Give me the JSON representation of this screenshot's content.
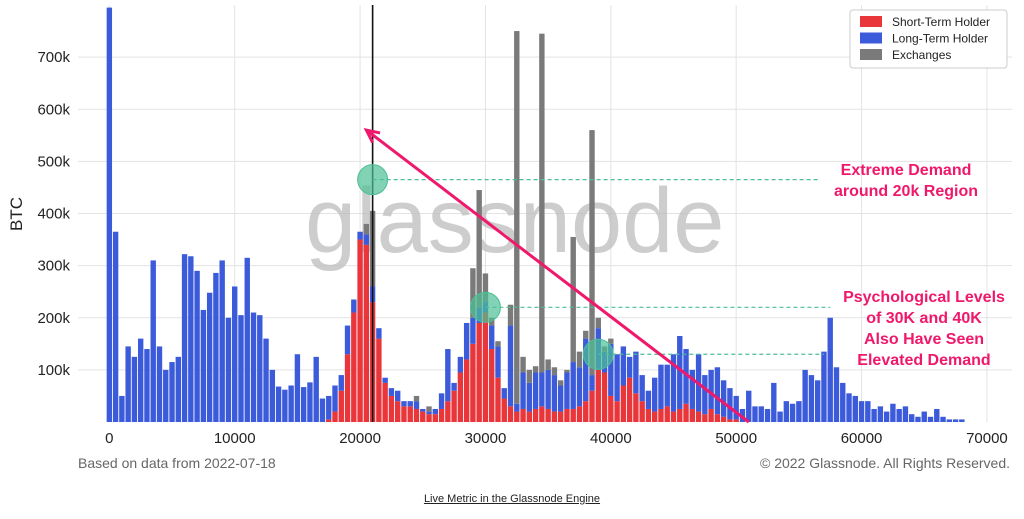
{
  "chart_data": {
    "type": "bar",
    "stacked": true,
    "ylabel": "BTC",
    "xlim": [
      -2500,
      72000
    ],
    "ylim": [
      0,
      800000
    ],
    "bin_width": 500,
    "x_ticks": [
      0,
      10000,
      20000,
      30000,
      40000,
      50000,
      60000,
      70000
    ],
    "x_tick_labels": [
      "0",
      "10000",
      "20000",
      "30000",
      "40000",
      "50000",
      "60000",
      "70000"
    ],
    "y_ticks": [
      100000,
      200000,
      300000,
      400000,
      500000,
      600000,
      700000
    ],
    "y_tick_labels": [
      "100k",
      "200k",
      "300k",
      "400k",
      "500k",
      "600k",
      "700k"
    ],
    "grid": true,
    "legend_position": "top-right",
    "colors": {
      "sth": "#e8363b",
      "lth": "#3b5bdb",
      "exchanges": "#7a7a7a",
      "accent": "#f0186b",
      "circle": "#4dbf95"
    },
    "series": [
      {
        "name": "Short-Term Holder",
        "key": "sth",
        "points": [
          [
            17500,
            5000
          ],
          [
            18000,
            20000
          ],
          [
            18500,
            60000
          ],
          [
            19000,
            130000
          ],
          [
            19500,
            210000
          ],
          [
            20000,
            350000
          ],
          [
            20500,
            340000
          ],
          [
            21000,
            230000
          ],
          [
            21500,
            160000
          ],
          [
            22000,
            75000
          ],
          [
            22500,
            50000
          ],
          [
            23000,
            40000
          ],
          [
            23500,
            30000
          ],
          [
            24000,
            30000
          ],
          [
            24500,
            25000
          ],
          [
            25000,
            20000
          ],
          [
            25500,
            15000
          ],
          [
            26000,
            15000
          ],
          [
            26500,
            25000
          ],
          [
            27000,
            40000
          ],
          [
            27500,
            60000
          ],
          [
            28000,
            95000
          ],
          [
            28500,
            120000
          ],
          [
            29000,
            150000
          ],
          [
            29500,
            190000
          ],
          [
            30000,
            210000
          ],
          [
            30500,
            140000
          ],
          [
            31000,
            85000
          ],
          [
            31500,
            45000
          ],
          [
            32000,
            30000
          ],
          [
            32500,
            20000
          ],
          [
            33000,
            25000
          ],
          [
            33500,
            20000
          ],
          [
            34000,
            25000
          ],
          [
            34500,
            30000
          ],
          [
            35000,
            25000
          ],
          [
            35500,
            20000
          ],
          [
            36000,
            20000
          ],
          [
            36500,
            25000
          ],
          [
            37000,
            25000
          ],
          [
            37500,
            30000
          ],
          [
            38000,
            40000
          ],
          [
            38500,
            60000
          ],
          [
            39000,
            100000
          ],
          [
            39500,
            95000
          ],
          [
            40000,
            50000
          ],
          [
            40500,
            40000
          ],
          [
            41000,
            70000
          ],
          [
            41500,
            85000
          ],
          [
            42000,
            55000
          ],
          [
            42500,
            40000
          ],
          [
            43000,
            25000
          ],
          [
            43500,
            20000
          ],
          [
            44000,
            25000
          ],
          [
            44500,
            30000
          ],
          [
            45000,
            20000
          ],
          [
            45500,
            25000
          ],
          [
            46000,
            35000
          ],
          [
            46500,
            25000
          ],
          [
            47000,
            20000
          ],
          [
            47500,
            15000
          ],
          [
            48000,
            25000
          ],
          [
            48500,
            15000
          ],
          [
            49000,
            10000
          ],
          [
            49500,
            5000
          ],
          [
            50000,
            5000
          ]
        ]
      },
      {
        "name": "Long-Term Holder",
        "key": "lth",
        "points": [
          [
            0,
            795000
          ],
          [
            500,
            365000
          ],
          [
            1000,
            50000
          ],
          [
            1500,
            145000
          ],
          [
            2000,
            125000
          ],
          [
            2500,
            160000
          ],
          [
            3000,
            140000
          ],
          [
            3500,
            310000
          ],
          [
            4000,
            145000
          ],
          [
            4500,
            100000
          ],
          [
            5000,
            115000
          ],
          [
            5500,
            125000
          ],
          [
            6000,
            322000
          ],
          [
            6500,
            318000
          ],
          [
            7000,
            290000
          ],
          [
            7500,
            215000
          ],
          [
            8000,
            248000
          ],
          [
            8500,
            286000
          ],
          [
            9000,
            310000
          ],
          [
            9500,
            200000
          ],
          [
            10000,
            260000
          ],
          [
            10500,
            205000
          ],
          [
            11000,
            315000
          ],
          [
            11500,
            210000
          ],
          [
            12000,
            205000
          ],
          [
            12500,
            160000
          ],
          [
            13000,
            100000
          ],
          [
            13500,
            68000
          ],
          [
            14000,
            62000
          ],
          [
            14500,
            70000
          ],
          [
            15000,
            130000
          ],
          [
            15500,
            67000
          ],
          [
            16000,
            76000
          ],
          [
            16500,
            125000
          ],
          [
            17000,
            45000
          ],
          [
            17500,
            45000
          ],
          [
            18000,
            50000
          ],
          [
            18500,
            30000
          ],
          [
            19000,
            55000
          ],
          [
            19500,
            25000
          ],
          [
            20000,
            15000
          ],
          [
            20500,
            20000
          ],
          [
            21000,
            30000
          ],
          [
            21500,
            20000
          ],
          [
            22000,
            10000
          ],
          [
            22500,
            15000
          ],
          [
            23000,
            20000
          ],
          [
            23500,
            10000
          ],
          [
            24000,
            10000
          ],
          [
            24500,
            15000
          ],
          [
            25000,
            5000
          ],
          [
            25500,
            5000
          ],
          [
            26000,
            10000
          ],
          [
            26500,
            30000
          ],
          [
            27000,
            100000
          ],
          [
            27500,
            15000
          ],
          [
            28000,
            30000
          ],
          [
            28500,
            70000
          ],
          [
            29000,
            50000
          ],
          [
            29500,
            30000
          ],
          [
            30000,
            20000
          ],
          [
            30500,
            45000
          ],
          [
            31000,
            60000
          ],
          [
            31500,
            20000
          ],
          [
            32000,
            155000
          ],
          [
            32500,
            15000
          ],
          [
            33000,
            70000
          ],
          [
            33500,
            55000
          ],
          [
            34000,
            70000
          ],
          [
            34500,
            65000
          ],
          [
            35000,
            75000
          ],
          [
            35500,
            70000
          ],
          [
            36000,
            50000
          ],
          [
            36500,
            70000
          ],
          [
            37000,
            90000
          ],
          [
            37500,
            75000
          ],
          [
            38000,
            120000
          ],
          [
            38500,
            30000
          ],
          [
            39000,
            80000
          ],
          [
            39500,
            40000
          ],
          [
            40000,
            100000
          ],
          [
            40500,
            90000
          ],
          [
            41000,
            75000
          ],
          [
            41500,
            40000
          ],
          [
            42000,
            80000
          ],
          [
            42500,
            50000
          ],
          [
            43000,
            35000
          ],
          [
            43500,
            65000
          ],
          [
            44000,
            85000
          ],
          [
            44500,
            80000
          ],
          [
            45000,
            110000
          ],
          [
            45500,
            140000
          ],
          [
            46000,
            105000
          ],
          [
            46500,
            75000
          ],
          [
            47000,
            110000
          ],
          [
            47500,
            75000
          ],
          [
            48000,
            75000
          ],
          [
            48500,
            90000
          ],
          [
            49000,
            70000
          ],
          [
            49500,
            60000
          ],
          [
            50000,
            45000
          ],
          [
            50500,
            25000
          ],
          [
            51000,
            60000
          ],
          [
            51500,
            30000
          ],
          [
            52000,
            30000
          ],
          [
            52500,
            25000
          ],
          [
            53000,
            75000
          ],
          [
            53500,
            20000
          ],
          [
            54000,
            40000
          ],
          [
            54500,
            35000
          ],
          [
            55000,
            40000
          ],
          [
            55500,
            100000
          ],
          [
            56000,
            90000
          ],
          [
            56500,
            80000
          ],
          [
            57000,
            135000
          ],
          [
            57500,
            200000
          ],
          [
            58000,
            105000
          ],
          [
            58500,
            75000
          ],
          [
            59000,
            55000
          ],
          [
            59500,
            50000
          ],
          [
            60000,
            40000
          ],
          [
            60500,
            40000
          ],
          [
            61000,
            25000
          ],
          [
            61500,
            30000
          ],
          [
            62000,
            20000
          ],
          [
            62500,
            35000
          ],
          [
            63000,
            25000
          ],
          [
            63500,
            30000
          ],
          [
            64000,
            15000
          ],
          [
            64500,
            10000
          ],
          [
            65000,
            20000
          ],
          [
            65500,
            10000
          ],
          [
            66000,
            25000
          ],
          [
            66500,
            10000
          ],
          [
            67000,
            5000
          ],
          [
            67500,
            5000
          ],
          [
            68000,
            5000
          ]
        ]
      },
      {
        "name": "Exchanges",
        "key": "exchanges",
        "points": [
          [
            20500,
            20000
          ],
          [
            21000,
            145000
          ],
          [
            24500,
            10000
          ],
          [
            25500,
            10000
          ],
          [
            29000,
            95000
          ],
          [
            29500,
            225000
          ],
          [
            30000,
            55000
          ],
          [
            30500,
            15000
          ],
          [
            31000,
            10000
          ],
          [
            32000,
            40000
          ],
          [
            32500,
            715000
          ],
          [
            33000,
            30000
          ],
          [
            33500,
            25000
          ],
          [
            34000,
            12000
          ],
          [
            34500,
            650000
          ],
          [
            35000,
            20000
          ],
          [
            35500,
            15000
          ],
          [
            36000,
            10000
          ],
          [
            36500,
            5000
          ],
          [
            37000,
            240000
          ],
          [
            37500,
            30000
          ],
          [
            38000,
            15000
          ],
          [
            38500,
            470000
          ],
          [
            39000,
            20000
          ],
          [
            39500,
            10000
          ],
          [
            40000,
            10000
          ]
        ]
      }
    ],
    "annotations": {
      "demand_20k": [
        "Extreme Demand",
        "around 20k Region"
      ],
      "levels_30k_40k": [
        "Psychological Levels",
        "of 30K and 40K",
        "Also Have Seen",
        "Elevated Demand"
      ]
    },
    "markers": {
      "vline_x": 21000,
      "arrow_from": [
        51000,
        0
      ],
      "arrow_to": [
        20500,
        560000
      ],
      "circles": [
        [
          21000,
          465000
        ],
        [
          30000,
          220000
        ],
        [
          39000,
          130000
        ]
      ],
      "dashed_levels": [
        {
          "y": 465000,
          "x_from": 21000,
          "x_to": 56500
        },
        {
          "y": 220000,
          "x_from": 30000,
          "x_to": 57500
        },
        {
          "y": 130000,
          "x_from": 39000,
          "x_to": 57000
        }
      ]
    },
    "watermark": "glassnode"
  },
  "footer": {
    "left": "Based on data from 2022-07-18",
    "right": "© 2022 Glassnode. All Rights Reserved.",
    "link": "Live Metric in the Glassnode Engine"
  }
}
